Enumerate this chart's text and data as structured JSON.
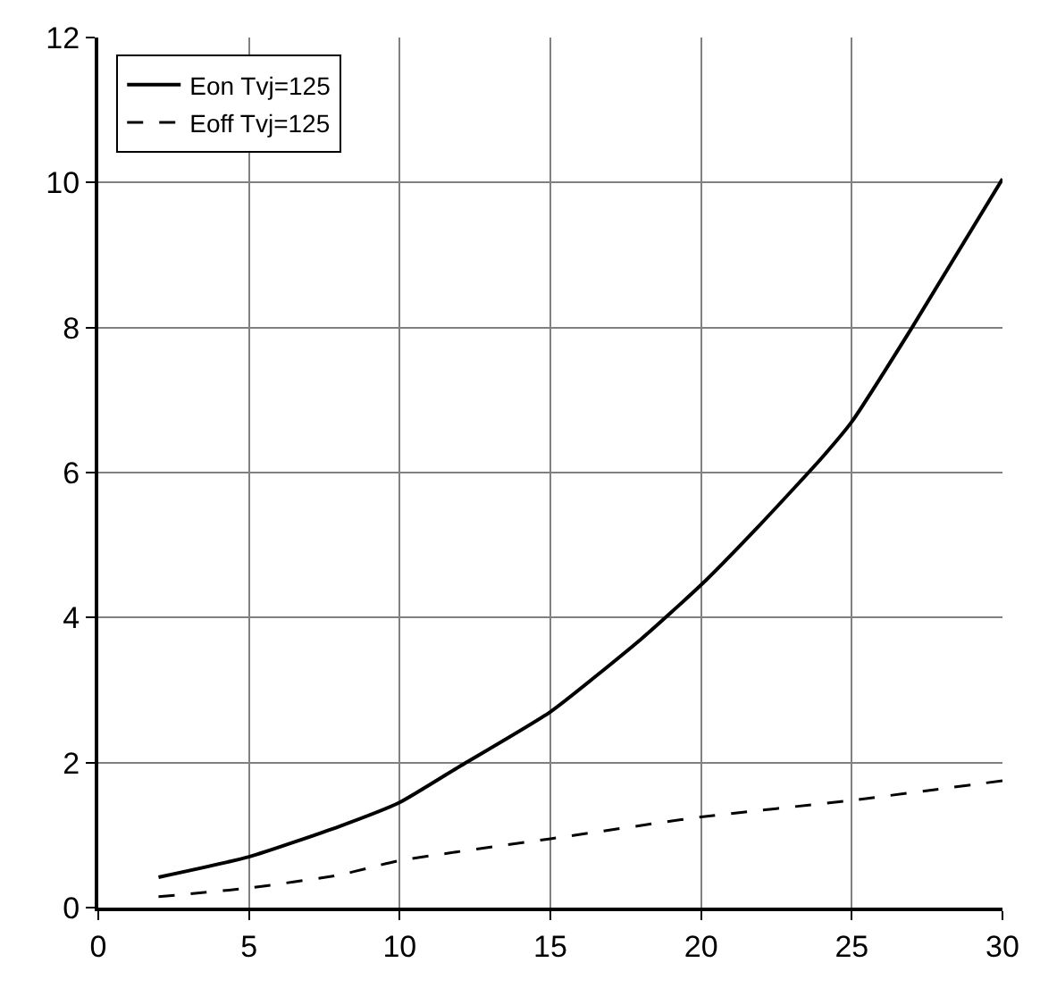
{
  "chart_data": {
    "type": "line",
    "series": [
      {
        "name": "Eon Tvj=125",
        "color": "#000000",
        "line_style": "solid",
        "x": [
          2,
          5,
          8,
          10,
          12,
          15,
          18,
          20,
          22,
          24,
          25,
          27,
          30
        ],
        "values": [
          0.42,
          0.7,
          1.12,
          1.45,
          1.95,
          2.7,
          3.7,
          4.45,
          5.3,
          6.2,
          6.7,
          8.0,
          10.05
        ]
      },
      {
        "name": "Eoff Tvj=125",
        "color": "#000000",
        "line_style": "dashed",
        "x": [
          2,
          5,
          8,
          9,
          10,
          15,
          20,
          25,
          30
        ],
        "values": [
          0.15,
          0.27,
          0.45,
          0.55,
          0.65,
          0.95,
          1.25,
          1.48,
          1.75
        ]
      }
    ],
    "xlim": [
      0,
      30
    ],
    "xticks": [
      0,
      5,
      10,
      15,
      20,
      25,
      30
    ],
    "ylim": [
      0,
      12
    ],
    "yticks": [
      0,
      2,
      4,
      6,
      8,
      10,
      12
    ],
    "grid": true,
    "legend": "top left",
    "marker": "none"
  }
}
